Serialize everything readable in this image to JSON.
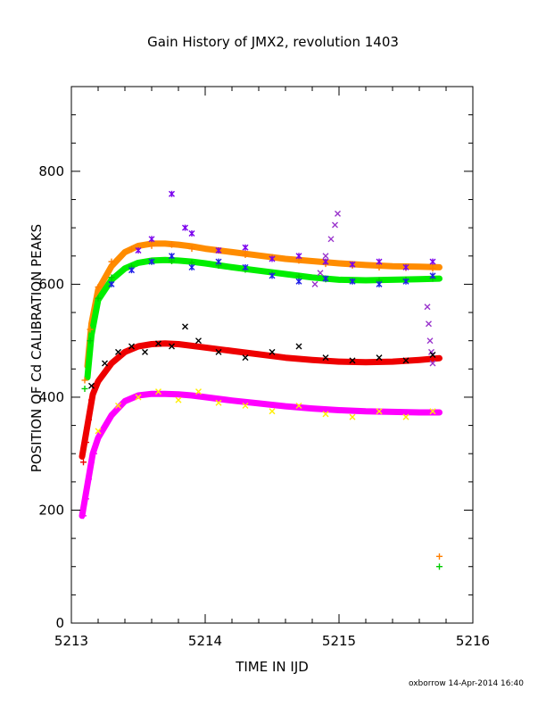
{
  "chart_data": {
    "type": "scatter",
    "title": "Gain History of JMX2, revolution 1403",
    "xlabel": "TIME IN IJD",
    "ylabel": "POSITION OF Cd CALIBRATION PEAKS",
    "xlim": [
      5213,
      5216
    ],
    "ylim": [
      0,
      950
    ],
    "xticks": [
      "5213",
      "5214",
      "5215",
      "5216"
    ],
    "yticks": [
      "0",
      "200",
      "400",
      "600",
      "800"
    ],
    "xtick_values": [
      5213,
      5214,
      5215,
      5216
    ],
    "ytick_values": [
      0,
      200,
      400,
      600,
      800
    ],
    "grid": false,
    "legend": "none",
    "credit": "oxborrow 14-Apr-2014 16:40",
    "series": [
      {
        "color": "#ff8c00",
        "style": "fit-line",
        "x": [
          5213.12,
          5213.15,
          5213.2,
          5213.3,
          5213.4,
          5213.5,
          5213.6,
          5213.7,
          5213.8,
          5213.9,
          5214.0,
          5214.2,
          5214.4,
          5214.6,
          5214.8,
          5215.0,
          5215.2,
          5215.4,
          5215.6,
          5215.75
        ],
        "y": [
          455,
          530,
          590,
          632,
          657,
          668,
          672,
          672,
          670,
          667,
          663,
          657,
          651,
          645,
          641,
          637,
          634,
          632,
          631,
          630
        ]
      },
      {
        "color": "#00ee00",
        "style": "fit-line",
        "x": [
          5213.12,
          5213.15,
          5213.2,
          5213.3,
          5213.4,
          5213.5,
          5213.6,
          5213.7,
          5213.8,
          5213.9,
          5214.0,
          5214.2,
          5214.4,
          5214.6,
          5214.8,
          5215.0,
          5215.2,
          5215.4,
          5215.6,
          5215.75
        ],
        "y": [
          435,
          510,
          572,
          608,
          628,
          638,
          642,
          643,
          642,
          640,
          637,
          630,
          624,
          618,
          612,
          608,
          607,
          608,
          609,
          610
        ]
      },
      {
        "color": "#ee0000",
        "style": "fit-line",
        "x": [
          5213.08,
          5213.12,
          5213.16,
          5213.2,
          5213.3,
          5213.4,
          5213.5,
          5213.6,
          5213.7,
          5213.8,
          5213.9,
          5214.0,
          5214.2,
          5214.4,
          5214.6,
          5214.8,
          5215.0,
          5215.2,
          5215.4,
          5215.6,
          5215.75
        ],
        "y": [
          295,
          350,
          405,
          428,
          460,
          480,
          490,
          494,
          495,
          494,
          491,
          488,
          482,
          476,
          470,
          466,
          463,
          462,
          463,
          466,
          469
        ]
      },
      {
        "color": "#ff00ff",
        "style": "fit-line",
        "x": [
          5213.08,
          5213.12,
          5213.16,
          5213.2,
          5213.3,
          5213.4,
          5213.5,
          5213.6,
          5213.7,
          5213.8,
          5213.9,
          5214.0,
          5214.2,
          5214.4,
          5214.6,
          5214.8,
          5215.0,
          5215.2,
          5215.4,
          5215.6,
          5215.75
        ],
        "y": [
          190,
          245,
          300,
          328,
          368,
          393,
          403,
          406,
          406,
          405,
          403,
          400,
          394,
          389,
          384,
          380,
          377,
          375,
          374,
          373,
          373
        ]
      },
      {
        "color": "#ff7f00",
        "style": "crosses",
        "x": [
          5213.1,
          5213.14,
          5213.2,
          5213.3,
          5213.45,
          5213.6,
          5213.75,
          5213.9,
          5214.1,
          5214.3,
          5214.5,
          5214.7,
          5214.9,
          5215.1,
          5215.3,
          5215.5,
          5215.7,
          5215.75
        ],
        "y": [
          430,
          520,
          595,
          640,
          662,
          668,
          670,
          663,
          660,
          652,
          648,
          642,
          636,
          633,
          630,
          629,
          628,
          118
        ]
      },
      {
        "color": "#00cc00",
        "style": "crosses",
        "x": [
          5213.1,
          5213.14,
          5213.2,
          5213.3,
          5213.45,
          5213.6,
          5213.75,
          5213.9,
          5214.1,
          5214.3,
          5214.5,
          5214.7,
          5214.9,
          5215.1,
          5215.3,
          5215.5,
          5215.7,
          5215.75
        ],
        "y": [
          415,
          500,
          575,
          612,
          632,
          640,
          641,
          638,
          633,
          626,
          619,
          614,
          609,
          606,
          607,
          608,
          610,
          100
        ]
      },
      {
        "color": "#ee0000",
        "style": "crosses",
        "x": [
          5213.09,
          5213.11,
          5213.13,
          5213.15,
          5213.17
        ],
        "y": [
          285,
          320,
          360,
          395,
          420
        ]
      },
      {
        "color": "#ff00ff",
        "style": "crosses",
        "x": [
          5213.09,
          5213.11,
          5213.13,
          5213.15,
          5213.17
        ],
        "y": [
          190,
          220,
          255,
          285,
          300
        ]
      },
      {
        "color": "#7a00ee",
        "style": "stars",
        "x": [
          5213.5,
          5213.6,
          5213.75,
          5213.85,
          5213.9,
          5214.1,
          5214.3,
          5214.5,
          5214.7,
          5214.9,
          5215.1,
          5215.3,
          5215.5,
          5215.7
        ],
        "y": [
          660,
          680,
          760,
          700,
          690,
          660,
          665,
          645,
          650,
          640,
          635,
          640,
          630,
          640
        ]
      },
      {
        "color": "#1e1ee8",
        "style": "stars",
        "x": [
          5213.3,
          5213.45,
          5213.6,
          5213.75,
          5213.9,
          5214.1,
          5214.3,
          5214.5,
          5214.7,
          5214.9,
          5215.1,
          5215.3,
          5215.5,
          5215.7
        ],
        "y": [
          600,
          625,
          640,
          650,
          630,
          640,
          630,
          615,
          605,
          610,
          605,
          600,
          605,
          615
        ]
      },
      {
        "color": "#9933cc",
        "style": "xs",
        "x": [
          5214.82,
          5214.86,
          5214.9,
          5214.94,
          5214.97,
          5214.99,
          5215.66,
          5215.67,
          5215.68,
          5215.69,
          5215.7
        ],
        "y": [
          600,
          620,
          650,
          680,
          705,
          725,
          560,
          530,
          500,
          480,
          460
        ]
      },
      {
        "color": "#000000",
        "style": "xs",
        "x": [
          5213.15,
          5213.25,
          5213.35,
          5213.45,
          5213.55,
          5213.65,
          5213.75,
          5213.85,
          5213.95,
          5214.1,
          5214.3,
          5214.5,
          5214.7,
          5214.9,
          5215.1,
          5215.3,
          5215.5,
          5215.7
        ],
        "y": [
          420,
          460,
          480,
          490,
          480,
          495,
          490,
          525,
          500,
          480,
          470,
          480,
          490,
          470,
          465,
          470,
          465,
          475
        ]
      },
      {
        "color": "#ffee00",
        "style": "xs",
        "x": [
          5213.2,
          5213.35,
          5213.5,
          5213.65,
          5213.8,
          5213.95,
          5214.1,
          5214.3,
          5214.5,
          5214.7,
          5214.9,
          5215.1,
          5215.3,
          5215.5,
          5215.7
        ],
        "y": [
          340,
          385,
          400,
          410,
          395,
          410,
          390,
          385,
          375,
          385,
          370,
          365,
          375,
          365,
          375
        ]
      }
    ]
  }
}
